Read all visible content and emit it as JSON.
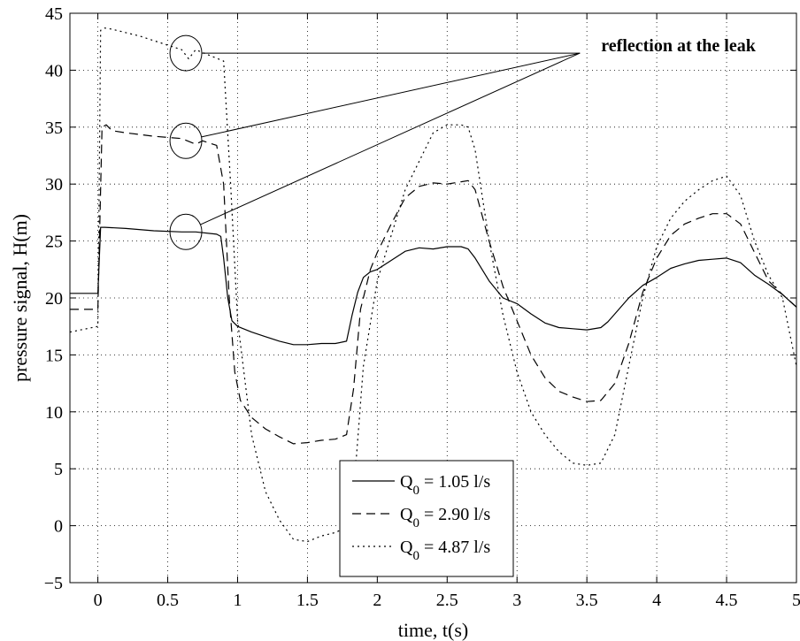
{
  "chart_data": {
    "type": "line",
    "xlabel": "time, t(s)",
    "ylabel": "pressure signal, H(m)",
    "xlim": [
      -0.2,
      5
    ],
    "ylim": [
      -5,
      45
    ],
    "xticks": [
      0,
      0.5,
      1,
      1.5,
      2,
      2.5,
      3,
      3.5,
      4,
      4.5,
      5
    ],
    "yticks": [
      -5,
      0,
      5,
      10,
      15,
      20,
      25,
      30,
      35,
      40,
      45
    ],
    "xtick_labels": [
      "0",
      "0.5",
      "1",
      "1.5",
      "2",
      "2.5",
      "3",
      "3.5",
      "4",
      "4.5",
      "5"
    ],
    "ytick_labels": [
      "−5",
      "0",
      "5",
      "10",
      "15",
      "20",
      "25",
      "30",
      "35",
      "40",
      "45"
    ],
    "grid": true,
    "legend_position": "bottom-center",
    "annotation": {
      "text": "reflection at the leak",
      "target": [
        3.45,
        41.5
      ],
      "circles": [
        [
          0.63,
          41.5
        ],
        [
          0.63,
          33.8
        ],
        [
          0.63,
          25.8
        ]
      ]
    },
    "series": [
      {
        "legend_label": "Q",
        "legend_sub": "0",
        "legend_rest": " = 1.05 l/s",
        "dash": "none",
        "x": [
          -0.2,
          0.0,
          0.02,
          0.05,
          0.2,
          0.4,
          0.6,
          0.7,
          0.85,
          0.88,
          0.9,
          0.93,
          0.96,
          1.0,
          1.1,
          1.2,
          1.3,
          1.4,
          1.5,
          1.6,
          1.7,
          1.78,
          1.82,
          1.86,
          1.9,
          1.95,
          2.0,
          2.1,
          2.2,
          2.3,
          2.4,
          2.5,
          2.6,
          2.65,
          2.7,
          2.8,
          2.9,
          3.0,
          3.1,
          3.2,
          3.3,
          3.4,
          3.5,
          3.6,
          3.65,
          3.7,
          3.8,
          3.9,
          4.0,
          4.1,
          4.2,
          4.3,
          4.4,
          4.5,
          4.6,
          4.7,
          4.8,
          4.9,
          5.0
        ],
        "y": [
          20.4,
          20.4,
          26.2,
          26.2,
          26.1,
          25.9,
          25.8,
          25.8,
          25.6,
          25.4,
          23.5,
          20.0,
          18.0,
          17.5,
          17.0,
          16.6,
          16.2,
          15.9,
          15.9,
          16.0,
          16.0,
          16.2,
          18.5,
          20.5,
          21.8,
          22.3,
          22.5,
          23.3,
          24.1,
          24.4,
          24.3,
          24.5,
          24.5,
          24.3,
          23.5,
          21.5,
          20.0,
          19.5,
          18.6,
          17.8,
          17.4,
          17.3,
          17.2,
          17.4,
          17.9,
          18.6,
          20.0,
          21.1,
          21.8,
          22.6,
          23.0,
          23.3,
          23.4,
          23.5,
          23.1,
          22.0,
          21.2,
          20.3,
          19.2
        ]
      },
      {
        "legend_label": "Q",
        "legend_sub": "0",
        "legend_rest": " = 2.90 l/s",
        "dash": "10,6",
        "x": [
          -0.2,
          0.0,
          0.03,
          0.06,
          0.1,
          0.2,
          0.4,
          0.6,
          0.7,
          0.75,
          0.85,
          0.9,
          0.94,
          0.98,
          1.02,
          1.1,
          1.2,
          1.3,
          1.4,
          1.5,
          1.6,
          1.7,
          1.78,
          1.83,
          1.88,
          1.95,
          2.0,
          2.1,
          2.2,
          2.3,
          2.4,
          2.5,
          2.6,
          2.65,
          2.7,
          2.8,
          2.9,
          3.0,
          3.1,
          3.2,
          3.3,
          3.4,
          3.5,
          3.6,
          3.7,
          3.8,
          3.9,
          4.0,
          4.1,
          4.2,
          4.3,
          4.4,
          4.5,
          4.6,
          4.7,
          4.8,
          4.9,
          5.0
        ],
        "y": [
          19.0,
          19.0,
          35.0,
          35.2,
          34.7,
          34.5,
          34.2,
          34.0,
          33.5,
          33.8,
          33.4,
          30.0,
          20.0,
          13.5,
          11.0,
          9.5,
          8.5,
          7.8,
          7.2,
          7.3,
          7.5,
          7.6,
          8.0,
          12.0,
          19.0,
          22.5,
          24.0,
          26.5,
          28.8,
          29.8,
          30.1,
          30.0,
          30.2,
          30.3,
          29.5,
          25.0,
          21.0,
          18.0,
          15.0,
          13.0,
          11.8,
          11.3,
          10.9,
          11.0,
          12.5,
          16.0,
          20.5,
          23.5,
          25.5,
          26.5,
          27.0,
          27.4,
          27.4,
          26.5,
          24.0,
          21.5,
          20.3,
          19.2
        ]
      },
      {
        "legend_label": "Q",
        "legend_sub": "0",
        "legend_rest": " = 4.87 l/s",
        "dash": "2,4",
        "x": [
          -0.2,
          0.0,
          0.02,
          0.05,
          0.1,
          0.2,
          0.3,
          0.4,
          0.5,
          0.6,
          0.65,
          0.7,
          0.8,
          0.9,
          0.95,
          1.0,
          1.1,
          1.2,
          1.3,
          1.4,
          1.5,
          1.6,
          1.7,
          1.75,
          1.8,
          1.85,
          1.9,
          2.0,
          2.1,
          2.2,
          2.3,
          2.4,
          2.5,
          2.6,
          2.65,
          2.7,
          2.8,
          2.9,
          3.0,
          3.1,
          3.2,
          3.3,
          3.4,
          3.5,
          3.6,
          3.7,
          3.8,
          3.9,
          4.0,
          4.1,
          4.2,
          4.3,
          4.4,
          4.5,
          4.6,
          4.7,
          4.8,
          4.9,
          5.0
        ],
        "y": [
          17.0,
          17.5,
          43.5,
          43.7,
          43.6,
          43.3,
          43.0,
          42.6,
          42.2,
          41.8,
          41.0,
          41.8,
          41.3,
          40.8,
          30.0,
          18.0,
          8.0,
          3.0,
          0.5,
          -1.2,
          -1.4,
          -0.9,
          -0.6,
          -0.3,
          2.0,
          6.0,
          14.0,
          21.5,
          25.5,
          29.5,
          32.0,
          34.5,
          35.2,
          35.2,
          35.0,
          33.0,
          25.0,
          18.5,
          13.5,
          10.0,
          8.0,
          6.5,
          5.5,
          5.3,
          5.5,
          8.0,
          14.0,
          20.0,
          24.5,
          27.0,
          28.5,
          29.5,
          30.3,
          30.7,
          29.0,
          25.0,
          22.0,
          20.0,
          14.0
        ]
      }
    ]
  }
}
